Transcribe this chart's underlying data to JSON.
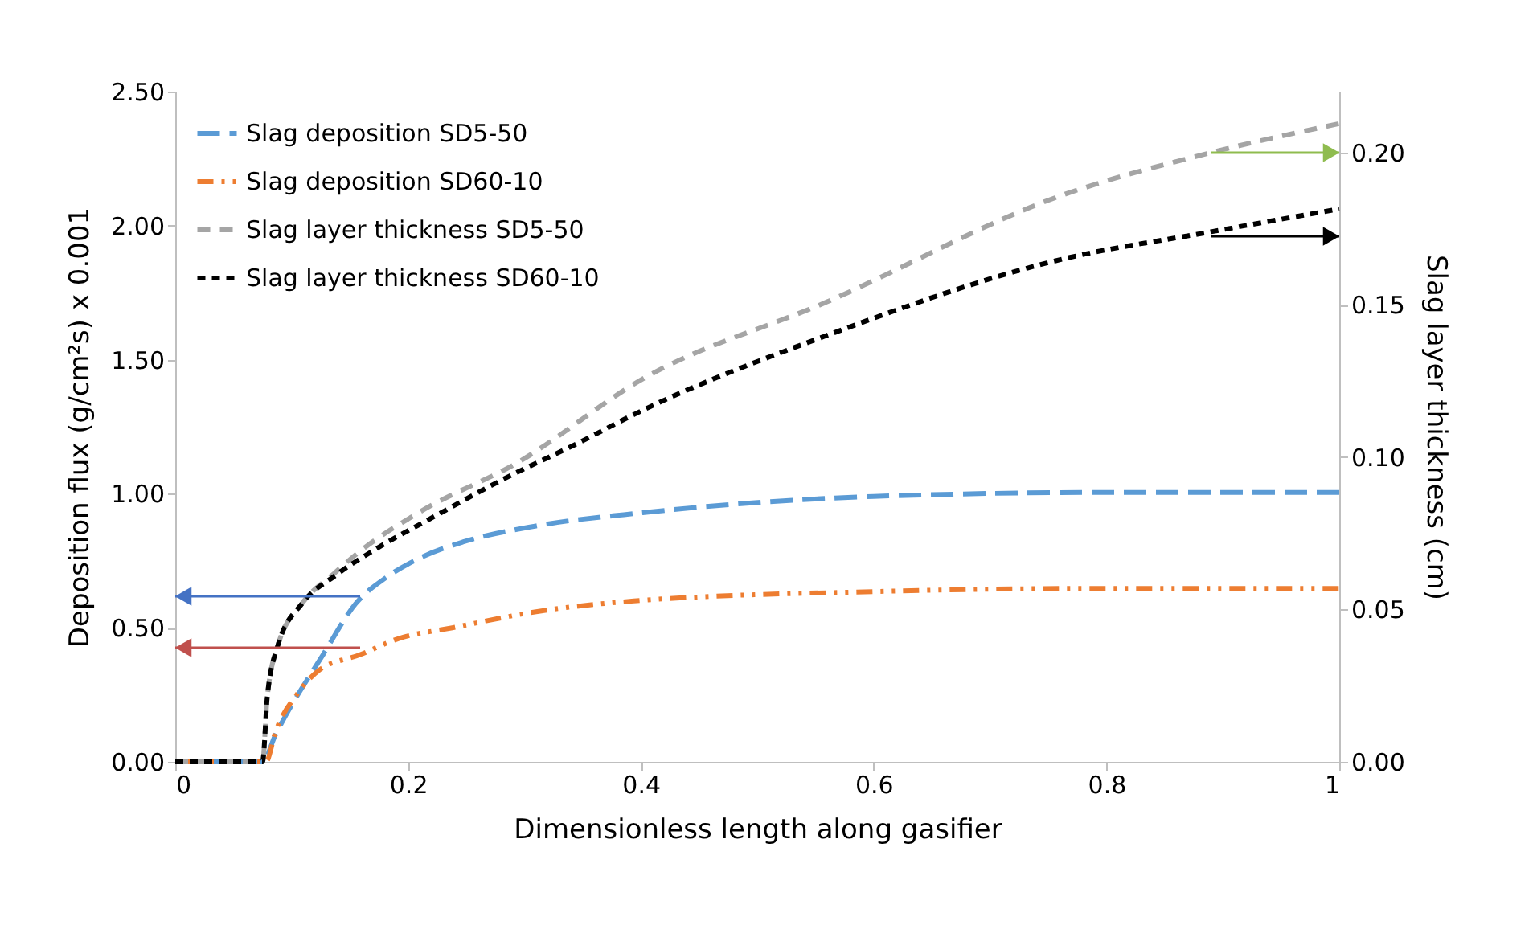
{
  "chart_data": {
    "type": "line",
    "xlabel": "Dimensionless length along gasifier",
    "ylabel": "Deposition flux (g/cm²s)    x 0.001",
    "y2label": "Slag layer thickness (cm)",
    "xlim": [
      0,
      1
    ],
    "xticks": [
      0,
      0.2,
      0.4,
      0.6,
      0.8,
      1
    ],
    "ylim": [
      0,
      2.5
    ],
    "yticks": [
      {
        "value": 0,
        "label": "0.00"
      },
      {
        "value": 0.5,
        "label": "0.50"
      },
      {
        "value": 1,
        "label": "1.00"
      },
      {
        "value": 1.5,
        "label": "1.50"
      },
      {
        "value": 2,
        "label": "2.00"
      },
      {
        "value": 2.5,
        "label": "2.50"
      }
    ],
    "y2lim": [
      0,
      0.22
    ],
    "y2ticks": [
      {
        "value": 0,
        "label": "0.00"
      },
      {
        "value": 0.05,
        "label": "0.05"
      },
      {
        "value": 0.1,
        "label": "0.10"
      },
      {
        "value": 0.15,
        "label": "0.15"
      },
      {
        "value": 0.2,
        "label": "0.20"
      }
    ],
    "grid": false,
    "legend": "top left",
    "marker": "none",
    "line_style": "dashed",
    "series": [
      {
        "name": "Slag deposition SD5-50",
        "color": "#5b9bd5",
        "x": [
          0,
          0.075,
          0.086,
          0.127,
          0.155,
          0.182,
          0.21,
          0.247,
          0.31,
          0.403,
          0.6,
          0.8,
          1
        ],
        "values": [
          0,
          0,
          0.1,
          0.4,
          0.59,
          0.69,
          0.76,
          0.82,
          0.88,
          0.93,
          0.99,
          1.005,
          1.005
        ]
      },
      {
        "name": "Slag deposition SD60-10",
        "color": "#ed7d31",
        "x": [
          0,
          0.078,
          0.086,
          0.106,
          0.123,
          0.159,
          0.192,
          0.238,
          0.31,
          0.394,
          0.6,
          0.8,
          1
        ],
        "values": [
          0,
          0,
          0.11,
          0.26,
          0.34,
          0.4,
          0.46,
          0.5,
          0.56,
          0.6,
          0.635,
          0.647,
          0.647
        ]
      },
      {
        "name": "Slag layer thickness SD5-50",
        "color": "#a5a5a5",
        "axis": "y2",
        "x": [
          0,
          0.075,
          0.079,
          0.088,
          0.109,
          0.137,
          0.155,
          0.21,
          0.293,
          0.403,
          0.56,
          0.762,
          0.89,
          1
        ],
        "values": [
          0,
          0,
          0.021,
          0.038,
          0.052,
          0.062,
          0.068,
          0.082,
          0.098,
          0.126,
          0.151,
          0.186,
          0.2,
          0.2095
        ]
      },
      {
        "name": "Slag layer thickness SD60-10",
        "color": "#000000",
        "axis": "y2",
        "x": [
          0,
          0.075,
          0.079,
          0.088,
          0.109,
          0.137,
          0.173,
          0.22,
          0.283,
          0.348,
          0.394,
          0.56,
          0.762,
          0.89,
          1
        ],
        "values": [
          0,
          0,
          0.021,
          0.038,
          0.052,
          0.061,
          0.07,
          0.08,
          0.093,
          0.105,
          0.114,
          0.14,
          0.165,
          0.174,
          0.1815
        ]
      }
    ]
  }
}
